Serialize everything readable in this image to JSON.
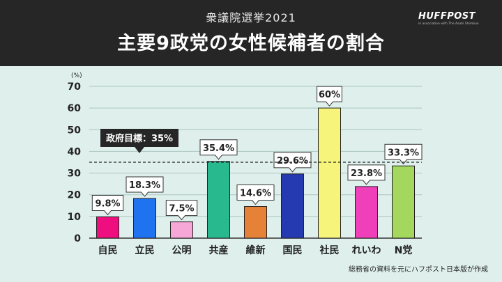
{
  "header": {
    "subtitle": "衆議院選挙2021",
    "title": "主要9政党の女性候補者の割合",
    "logo": "HUFFPOST",
    "logo_sub": "in association with The Asahi Shimbun"
  },
  "source_note": "総務省の資料を元にハフポスト日本版が作成",
  "chart_data": {
    "type": "bar",
    "unit_label": "(%)",
    "categories": [
      "自民",
      "立民",
      "公明",
      "共産",
      "維新",
      "国民",
      "社民",
      "れいわ",
      "N党"
    ],
    "values": [
      9.8,
      18.3,
      7.5,
      35.4,
      14.6,
      29.6,
      60,
      23.8,
      33.3
    ],
    "data_labels": [
      "9.8%",
      "18.3%",
      "7.5%",
      "35.4%",
      "14.6%",
      "29.6%",
      "60%",
      "23.8%",
      "33.3%"
    ],
    "bar_colors": [
      "#ef0e80",
      "#1f72f0",
      "#f7a6d8",
      "#29b98f",
      "#e68238",
      "#2539b0",
      "#f6f47a",
      "#ef3fb9",
      "#a3d75e"
    ],
    "ylim": [
      0,
      70
    ],
    "yticks": [
      0,
      10,
      20,
      30,
      40,
      50,
      60,
      70
    ],
    "grid": true,
    "reference_line": {
      "value": 35,
      "label": "政府目標：35%"
    }
  }
}
